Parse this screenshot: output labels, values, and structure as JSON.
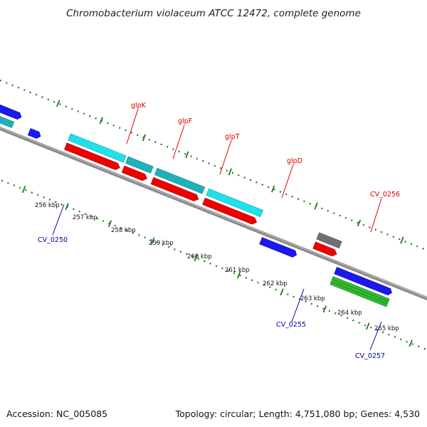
{
  "title": "Chromobacterium violaceum ATCC 12472, complete genome",
  "footer": {
    "accession": "Accession: NC_005085",
    "summary": "Topology: circular; Length: 4,751,080 bp; Genes: 4,530"
  },
  "colors": {
    "backbone": "#8a8a8a",
    "dotted_track": "#1f7a1f",
    "cyan": "#22e0e8",
    "teal": "#1fb0b8",
    "red": "#ee0000",
    "blue": "#1a1aee",
    "gray": "#707070",
    "green": "#33bb33",
    "label_red": "#dd0000",
    "label_blue": "#0000aa"
  },
  "ticks": [
    "256 kbp",
    "257 kbp",
    "258 kbp",
    "259 kbp",
    "260 kbp",
    "261 kbp",
    "262 kbp",
    "263 kbp",
    "264 kbp",
    "265 kbp"
  ],
  "gene_labels": {
    "glpK": "glpK",
    "glpF": "glpF",
    "glpT": "glpT",
    "glpD": "glpD",
    "CV_0256": "CV_0256",
    "CV_0250": "CV_0250",
    "CV_0255": "CV_0255",
    "CV_0257": "CV_0257"
  },
  "features": [
    {
      "kind": "blue",
      "name": "CV_0249-cds",
      "dir": "right"
    },
    {
      "kind": "teal",
      "name": "CV_0249-gene",
      "dir": "right"
    },
    {
      "kind": "blue",
      "name": "CV_0250-cds",
      "dir": "right"
    },
    {
      "kind": "cyan",
      "name": "glpK-gene",
      "dir": "none"
    },
    {
      "kind": "red",
      "name": "glpK-cds",
      "dir": "right"
    },
    {
      "kind": "teal",
      "name": "glpF-gene",
      "dir": "none"
    },
    {
      "kind": "red",
      "name": "glpF-cds",
      "dir": "right"
    },
    {
      "kind": "teal",
      "name": "glpT-gene",
      "dir": "none"
    },
    {
      "kind": "red",
      "name": "glpT-cds",
      "dir": "right"
    },
    {
      "kind": "cyan",
      "name": "glpD-gene",
      "dir": "none"
    },
    {
      "kind": "red",
      "name": "glpD-cds",
      "dir": "right"
    },
    {
      "kind": "blue",
      "name": "CV_0255-cds",
      "dir": "right"
    },
    {
      "kind": "gray",
      "name": "CV_0256-gene",
      "dir": "none"
    },
    {
      "kind": "red",
      "name": "CV_0256-cds",
      "dir": "right"
    },
    {
      "kind": "blue",
      "name": "CV_0257-cds",
      "dir": "right"
    },
    {
      "kind": "green",
      "name": "CV_0257-gene",
      "dir": "none"
    }
  ]
}
